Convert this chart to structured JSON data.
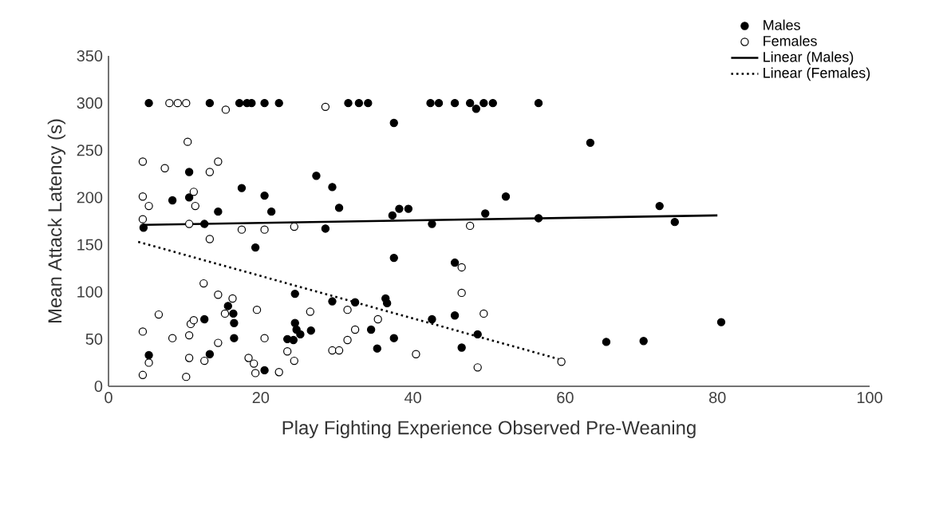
{
  "chart_data": {
    "type": "scatter",
    "xlabel": "Play Fighting Experience Observed Pre-Weaning",
    "ylabel": "Mean Attack Latency (s)",
    "xlim": [
      0,
      100
    ],
    "ylim": [
      0,
      350
    ],
    "xticks": [
      0,
      20,
      40,
      60,
      80,
      100
    ],
    "yticks": [
      0,
      50,
      100,
      150,
      200,
      250,
      300,
      350
    ],
    "grid": false,
    "legend": "top right",
    "series": [
      {
        "name": "Males",
        "marker": "circle",
        "color": "#000000",
        "x": [
          5.3,
          13.3,
          17.2,
          18.2,
          18.8,
          20.5,
          22.4,
          31.5,
          32.9,
          34.1,
          10.6,
          8.4,
          10.6,
          17.5,
          20.5,
          21.4,
          14.4,
          27.3,
          29.4,
          30.3,
          4.6,
          12.6,
          28.5,
          19.3,
          24.5,
          29.4,
          32.4,
          12.6,
          15.7,
          16.4,
          16.5,
          16.5,
          24.5,
          24.7,
          23.5,
          24.3,
          25.2,
          26.6,
          5.3,
          13.3,
          20.5,
          34.5,
          35.3,
          42.3,
          43.4,
          45.5,
          47.5,
          48.3,
          49.3,
          50.5,
          56.5,
          37.5,
          63.3,
          52.2,
          37.3,
          38.2,
          39.4,
          42.5,
          49.5,
          56.5,
          72.4,
          74.4,
          37.5,
          45.5,
          36.4,
          36.6,
          42.5,
          45.5,
          37.5,
          48.5,
          46.4,
          65.4,
          70.3,
          80.5
        ],
        "values": [
          300,
          300,
          300,
          300,
          300,
          300,
          300,
          300,
          300,
          300,
          227,
          197,
          200,
          210,
          202,
          185,
          185,
          223,
          211,
          189,
          168,
          172,
          167,
          147,
          98,
          90,
          89,
          71,
          85,
          77,
          67,
          51,
          67,
          60,
          50,
          49,
          55,
          59,
          33,
          34,
          17,
          60,
          40,
          300,
          300,
          300,
          300,
          294,
          300,
          300,
          300,
          279,
          258,
          201,
          181,
          188,
          188,
          172,
          183,
          178,
          191,
          174,
          136,
          131,
          93,
          88,
          71,
          75,
          51,
          55,
          41,
          47,
          48,
          68
        ]
      },
      {
        "name": "Females",
        "marker": "circle",
        "color": "#ffffff",
        "x": [
          8.0,
          9.1,
          10.2,
          15.4,
          28.5,
          10.4,
          4.5,
          7.4,
          14.4,
          13.3,
          11.2,
          4.5,
          5.3,
          11.4,
          4.5,
          10.6,
          13.3,
          17.5,
          20.5,
          24.4,
          12.5,
          14.4,
          16.3,
          15.3,
          6.6,
          19.5,
          26.5,
          31.4,
          10.8,
          11.2,
          10.6,
          4.5,
          8.4,
          20.5,
          14.4,
          12.6,
          10.6,
          18.4,
          19.1,
          19.3,
          22.4,
          23.5,
          24.4,
          29.4,
          30.3,
          32.4,
          31.4,
          5.3,
          4.5,
          10.2,
          47.5,
          46.4,
          46.4,
          49.3,
          35.4,
          40.4,
          48.5,
          59.5
        ],
        "values": [
          300,
          300,
          300,
          293,
          296,
          259,
          238,
          231,
          238,
          227,
          206,
          201,
          191,
          191,
          177,
          172,
          156,
          166,
          166,
          169,
          109,
          97,
          93,
          77,
          76,
          81,
          79,
          81,
          66,
          70,
          54,
          58,
          51,
          51,
          46,
          27,
          30,
          30,
          24,
          14,
          15,
          37,
          27,
          38,
          38,
          60,
          49,
          25,
          12,
          10,
          170,
          126,
          99,
          77,
          71,
          34,
          20,
          26
        ]
      },
      {
        "name": "Linear (Males)",
        "type": "line",
        "color": "#000000",
        "line_style": "solid",
        "marker": "none",
        "x": [
          4.5,
          80
        ],
        "values": [
          171,
          181
        ]
      },
      {
        "name": "Linear (Females)",
        "type": "line",
        "color": "#000000",
        "line_style": "dotted",
        "marker": "none",
        "x": [
          3.9,
          59.1
        ],
        "values": [
          153,
          29
        ]
      }
    ]
  }
}
